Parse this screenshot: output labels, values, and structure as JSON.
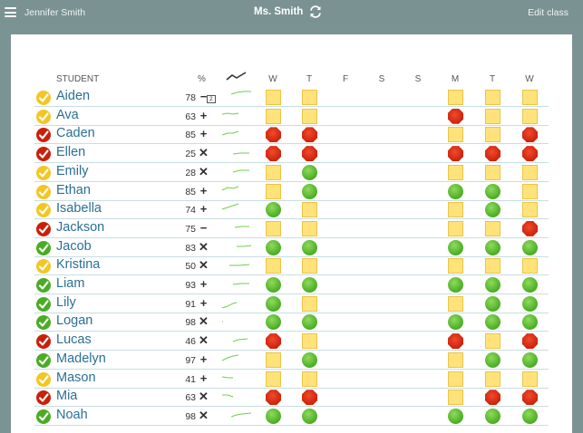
{
  "topbar": {
    "user": "Jennifer Smith",
    "teacher": "Ms. Smith",
    "edit_label": "Edit class"
  },
  "headers": {
    "student": "STUDENT",
    "percent": "%",
    "days": [
      "W",
      "T",
      "F",
      "S",
      "S",
      "M",
      "T",
      "W"
    ]
  },
  "colors": {
    "topbar": "#7b9292",
    "name": "#2a6f95",
    "yellow": "#ffe37a",
    "green": "#4aac24",
    "red": "#c9200c"
  },
  "students": [
    {
      "name": "Aiden",
      "status": "yellow",
      "pct": "78",
      "sym": "−",
      "badge": "2",
      "days": [
        "y",
        "y",
        "",
        "",
        "",
        "y",
        "y",
        "y"
      ]
    },
    {
      "name": "Ava",
      "status": "yellow",
      "pct": "63",
      "sym": "+",
      "days": [
        "y",
        "y",
        "",
        "",
        "",
        "r",
        "y",
        "y"
      ]
    },
    {
      "name": "Caden",
      "status": "red",
      "pct": "85",
      "sym": "+",
      "days": [
        "r",
        "r",
        "",
        "",
        "",
        "y",
        "y",
        "r"
      ]
    },
    {
      "name": "Ellen",
      "status": "red",
      "pct": "25",
      "sym": "×",
      "days": [
        "r",
        "r",
        "",
        "",
        "",
        "r",
        "r",
        "r"
      ]
    },
    {
      "name": "Emily",
      "status": "yellow",
      "pct": "28",
      "sym": "×",
      "days": [
        "y",
        "g",
        "",
        "",
        "",
        "y",
        "y",
        "y"
      ]
    },
    {
      "name": "Ethan",
      "status": "yellow",
      "pct": "85",
      "sym": "+",
      "days": [
        "y",
        "g",
        "",
        "",
        "",
        "g",
        "g",
        "y"
      ]
    },
    {
      "name": "Isabella",
      "status": "yellow",
      "pct": "74",
      "sym": "+",
      "days": [
        "g",
        "y",
        "",
        "",
        "",
        "y",
        "g",
        "y"
      ]
    },
    {
      "name": "Jackson",
      "status": "red",
      "pct": "75",
      "sym": "−",
      "days": [
        "y",
        "y",
        "",
        "",
        "",
        "y",
        "y",
        "r"
      ]
    },
    {
      "name": "Jacob",
      "status": "green",
      "pct": "83",
      "sym": "×",
      "days": [
        "g",
        "g",
        "",
        "",
        "",
        "g",
        "g",
        "g"
      ]
    },
    {
      "name": "Kristina",
      "status": "yellow",
      "pct": "50",
      "sym": "×",
      "days": [
        "y",
        "y",
        "",
        "",
        "",
        "y",
        "y",
        "y"
      ]
    },
    {
      "name": "Liam",
      "status": "green",
      "pct": "93",
      "sym": "+",
      "days": [
        "g",
        "g",
        "",
        "",
        "",
        "g",
        "g",
        "g"
      ]
    },
    {
      "name": "Lily",
      "status": "green",
      "pct": "91",
      "sym": "+",
      "days": [
        "g",
        "y",
        "",
        "",
        "",
        "y",
        "g",
        "g"
      ]
    },
    {
      "name": "Logan",
      "status": "green",
      "pct": "98",
      "sym": "×",
      "days": [
        "g",
        "g",
        "",
        "",
        "",
        "g",
        "g",
        "g"
      ]
    },
    {
      "name": "Lucas",
      "status": "red",
      "pct": "46",
      "sym": "×",
      "days": [
        "r",
        "y",
        "",
        "",
        "",
        "r",
        "y",
        "r"
      ]
    },
    {
      "name": "Madelyn",
      "status": "green",
      "pct": "97",
      "sym": "+",
      "days": [
        "y",
        "g",
        "",
        "",
        "",
        "y",
        "g",
        "g"
      ]
    },
    {
      "name": "Mason",
      "status": "yellow",
      "pct": "41",
      "sym": "+",
      "days": [
        "y",
        "y",
        "",
        "",
        "",
        "y",
        "y",
        "y"
      ]
    },
    {
      "name": "Mia",
      "status": "red",
      "pct": "63",
      "sym": "×",
      "days": [
        "r",
        "r",
        "",
        "",
        "",
        "y",
        "r",
        "r"
      ]
    },
    {
      "name": "Noah",
      "status": "green",
      "pct": "98",
      "sym": "×",
      "days": [
        "g",
        "g",
        "",
        "",
        "",
        "g",
        "g",
        "g"
      ]
    }
  ]
}
